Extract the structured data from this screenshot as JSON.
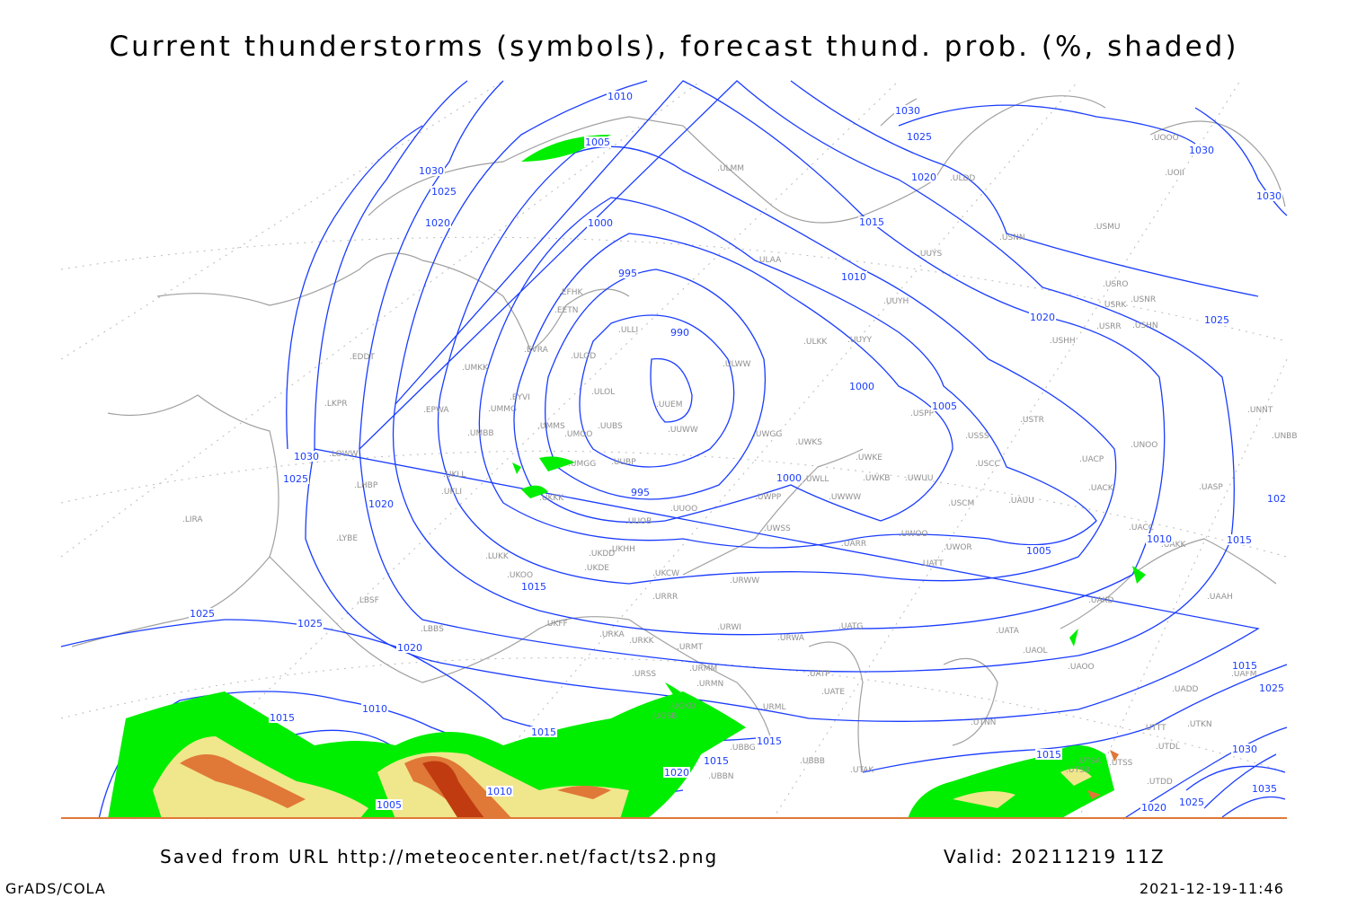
{
  "title": "Current thunderstorms (symbols), forecast thund. prob. (%, shaded)",
  "footer": {
    "source": "Saved from URL http://meteocenter.net/fact/ts2.png",
    "valid": "Valid: 20211219 11Z",
    "credit": "GrADS/COLA",
    "timestamp": "2021-12-19-11:46"
  },
  "colors": {
    "isobar": "#1a3cff",
    "coast": "#a0a0a0",
    "prob_low": "#00ee00",
    "prob_mid": "#f0e68c",
    "prob_high": "#e07838",
    "prob_max": "#c03c10"
  },
  "stations": [
    "EFHK",
    "EETN",
    "EVRA",
    "ULOD",
    "ULLI",
    "ULOL",
    "EYVI",
    "UMMG",
    "UMMS",
    "UMOO",
    "UUBS",
    "UUEM",
    "UUWW",
    "ULWW",
    "UWGG",
    "UMGG",
    "UUBP",
    "UKKK",
    "UUOO",
    "UUOB",
    "UWPP",
    "UWLL",
    "UWWW",
    "UWKS",
    "UWKE",
    "UWKB",
    "UWUU",
    "USSS",
    "USCC",
    "USCM",
    "UAUU",
    "USPP",
    "USTR",
    "UUYY",
    "ULKK",
    "UUYH",
    "UUYS",
    "ULAA",
    "ULMM",
    "ULDD",
    "USMU",
    "USRO",
    "USRK",
    "USNR",
    "USRR",
    "USHN",
    "USHH",
    "UNOO",
    "UACP",
    "UACK",
    "UASP",
    "UNNT",
    "UNBB",
    "UACC",
    "UAKK",
    "UWOO",
    "UWOR",
    "UATT",
    "UARR",
    "UWSS",
    "UMKK",
    "EPWA",
    "UMBB",
    "EDDT",
    "LKPR",
    "LOWW",
    "LHBP",
    "UKLL",
    "UKLI",
    "LIRA",
    "LYBE",
    "LBSF",
    "LBBS",
    "UKOO",
    "LUKK",
    "UKFF",
    "UKHH",
    "UKDD",
    "UKDE",
    "UKCW",
    "URWW",
    "URRR",
    "URWI",
    "UATG",
    "URKA",
    "URKK",
    "URMT",
    "URMM",
    "URMN",
    "URSS",
    "URWA",
    "UATP",
    "UATE",
    "UATA",
    "UAOL",
    "UAOO",
    "UTNN",
    "URML",
    "UGKO",
    "UGSB",
    "UBBG",
    "UBBN",
    "UBBB",
    "UTAK",
    "UAKD",
    "UAAH",
    "UADD",
    "UAFM",
    "UTTT",
    "UTDL",
    "UTKN",
    "UTSA",
    "UTSB",
    "UTSS",
    "UTDD",
    "UOOO",
    "UOII",
    "USNN"
  ],
  "isobar_labels": [
    "1010",
    "1005",
    "1030",
    "1025",
    "1020",
    "1000",
    "995",
    "990",
    "995",
    "1000",
    "1000",
    "1005",
    "1010",
    "1015",
    "1020",
    "1025",
    "1030",
    "1020",
    "1025",
    "1030",
    "1030",
    "1030",
    "1025",
    "1020",
    "1025",
    "1025",
    "1020",
    "1015",
    "1015",
    "1010",
    "1015",
    "1015",
    "1015",
    "1020",
    "1010",
    "1005",
    "1005",
    "1010",
    "1015",
    "1015",
    "1015",
    "1025",
    "1030",
    "1035",
    "1020",
    "1025",
    "102"
  ]
}
